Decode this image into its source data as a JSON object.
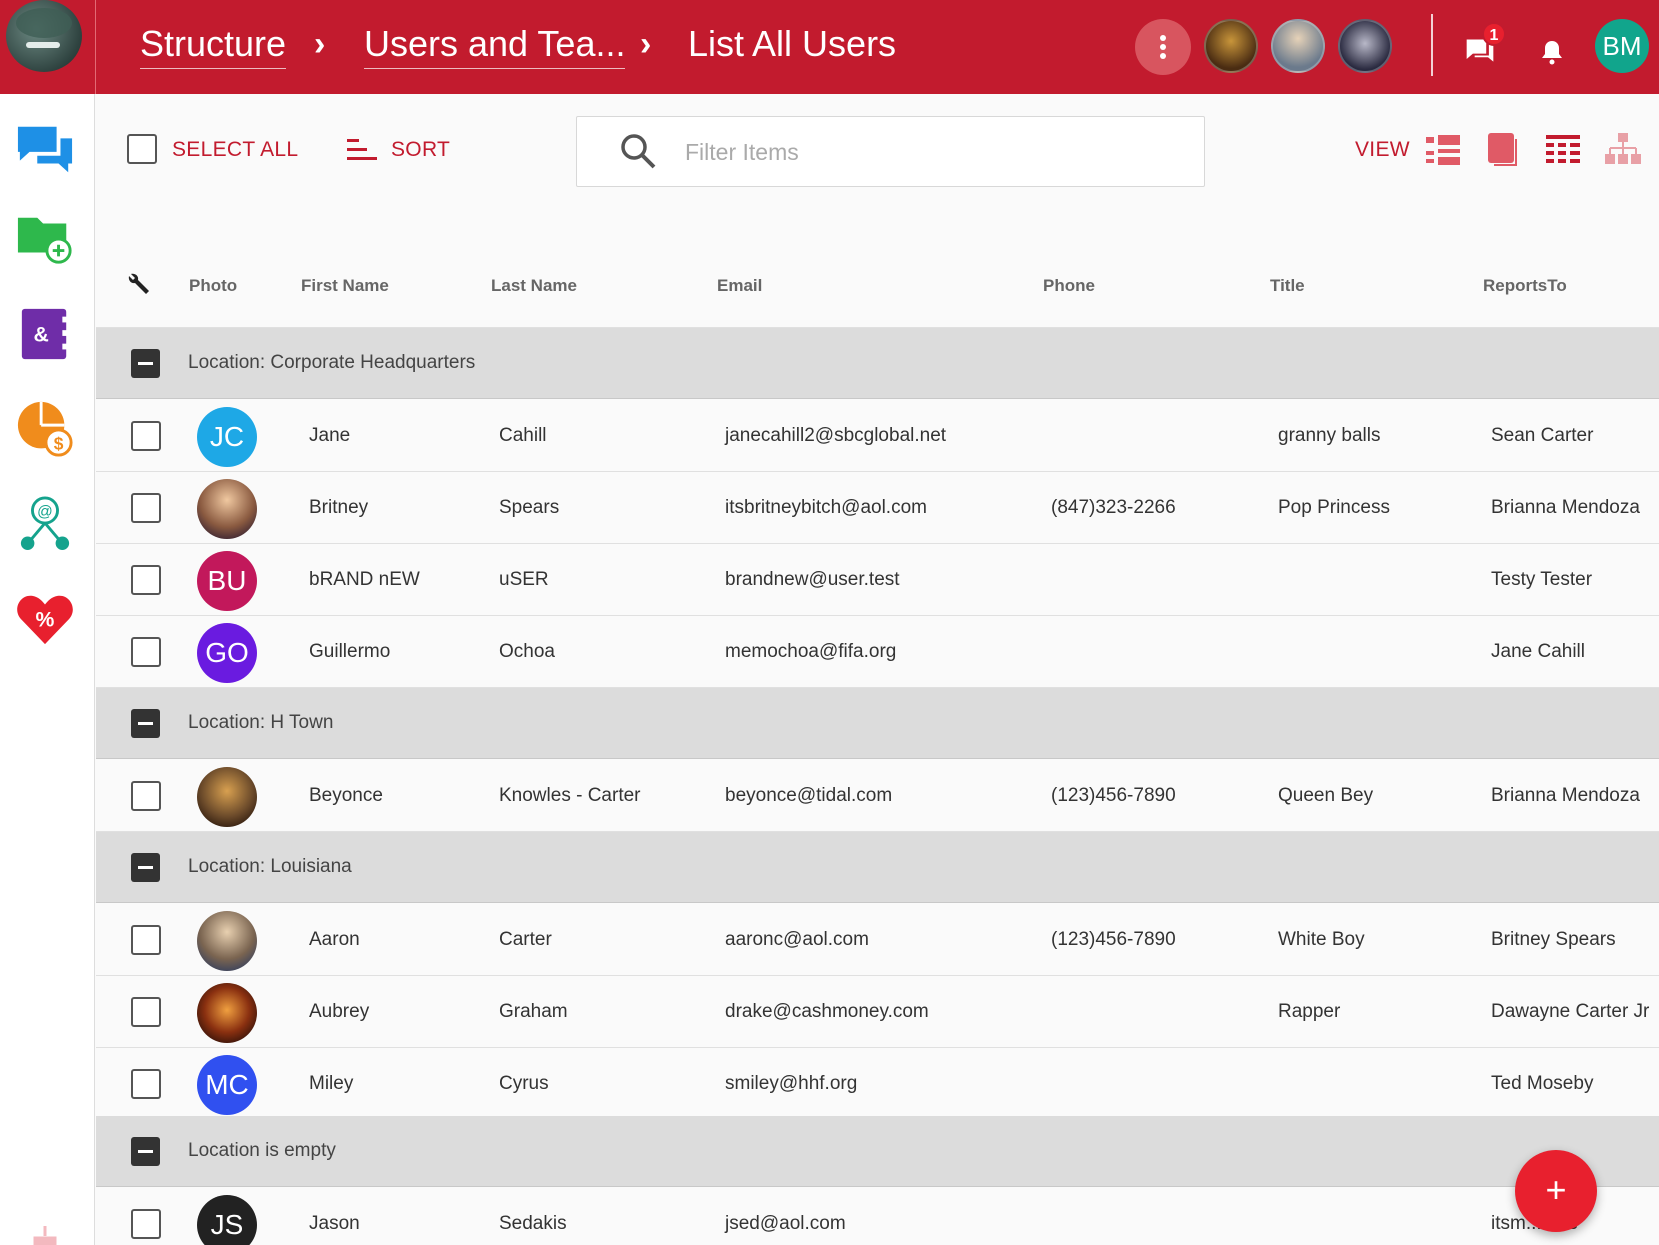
{
  "header": {
    "breadcrumbs": [
      {
        "label": "Structure"
      },
      {
        "label": "Users and Tea..."
      },
      {
        "label": "List All Users"
      }
    ],
    "notification_count": "1",
    "user_initials": "BM",
    "brand_color": "#c21b2e"
  },
  "sidebar": {
    "items": [
      {
        "icon": "chat-bubbles-icon",
        "color": "#1e90e6"
      },
      {
        "icon": "folder-add-icon",
        "color": "#2eb84c"
      },
      {
        "icon": "contacts-book-icon",
        "color": "#6f2da8"
      },
      {
        "icon": "pie-chart-dollar-icon",
        "color": "#f08c1c"
      },
      {
        "icon": "email-network-icon",
        "color": "#15a38d"
      },
      {
        "icon": "heart-percent-icon",
        "color": "#e8202e"
      }
    ]
  },
  "toolbar": {
    "select_all_label": "SELECT ALL",
    "sort_label": "SORT",
    "search_placeholder": "Filter Items",
    "view_label": "VIEW"
  },
  "table": {
    "columns": [
      "Photo",
      "First Name",
      "Last Name",
      "Email",
      "Phone",
      "Title",
      "ReportsTo"
    ],
    "groups": [
      {
        "label": "Location: Corporate Headquarters",
        "rows": [
          {
            "initials": "JC",
            "avatar_color": "#1ea8e6",
            "first": "Jane",
            "last": "Cahill",
            "email": "janecahill2@sbcglobal.net",
            "phone": "",
            "title": "granny balls",
            "reports_to": "Sean Carter"
          },
          {
            "initials": "",
            "avatar_color": "#8a6a5a",
            "first": "Britney",
            "last": "Spears",
            "email": "itsbritneybitch@aol.com",
            "phone": "(847)323-2266",
            "title": "Pop Princess",
            "reports_to": "Brianna Mendoza"
          },
          {
            "initials": "BU",
            "avatar_color": "#c2185b",
            "first": "bRAND nEW",
            "last": "uSER",
            "email": "brandnew@user.test",
            "phone": "",
            "title": "",
            "reports_to": "Testy Tester"
          },
          {
            "initials": "GO",
            "avatar_color": "#6a1be0",
            "first": "Guillermo",
            "last": "Ochoa",
            "email": "memochoa@fifa.org",
            "phone": "",
            "title": "",
            "reports_to": "Jane Cahill"
          }
        ]
      },
      {
        "label": "Location: H Town",
        "rows": [
          {
            "initials": "",
            "avatar_color": "#6b4a2a",
            "first": "Beyonce",
            "last": "Knowles - Carter",
            "email": "beyonce@tidal.com",
            "phone": "(123)456-7890",
            "title": "Queen Bey",
            "reports_to": "Brianna Mendoza"
          }
        ]
      },
      {
        "label": "Location: Louisiana",
        "rows": [
          {
            "initials": "",
            "avatar_color": "#7a6450",
            "first": "Aaron",
            "last": "Carter",
            "email": "aaronc@aol.com",
            "phone": "(123)456-7890",
            "title": "White Boy",
            "reports_to": "Britney Spears"
          },
          {
            "initials": "",
            "avatar_color": "#8a3010",
            "first": "Aubrey",
            "last": "Graham",
            "email": "drake@cashmoney.com",
            "phone": "",
            "title": "Rapper",
            "reports_to": "Dawayne Carter Jr"
          },
          {
            "initials": "MC",
            "avatar_color": "#3050f0",
            "first": "Miley",
            "last": "Cyrus",
            "email": "smiley@hhf.org",
            "phone": "",
            "title": "",
            "reports_to": "Ted Moseby"
          }
        ]
      },
      {
        "label": "Location is empty",
        "rows": [
          {
            "initials": "JS",
            "avatar_color": "#222222",
            "first": "Jason",
            "last": "Sedakis",
            "email": "jsed@aol.com",
            "phone": "",
            "title": "",
            "reports_to": "itsm... nes"
          }
        ]
      }
    ]
  },
  "fab": {
    "label": "+"
  }
}
